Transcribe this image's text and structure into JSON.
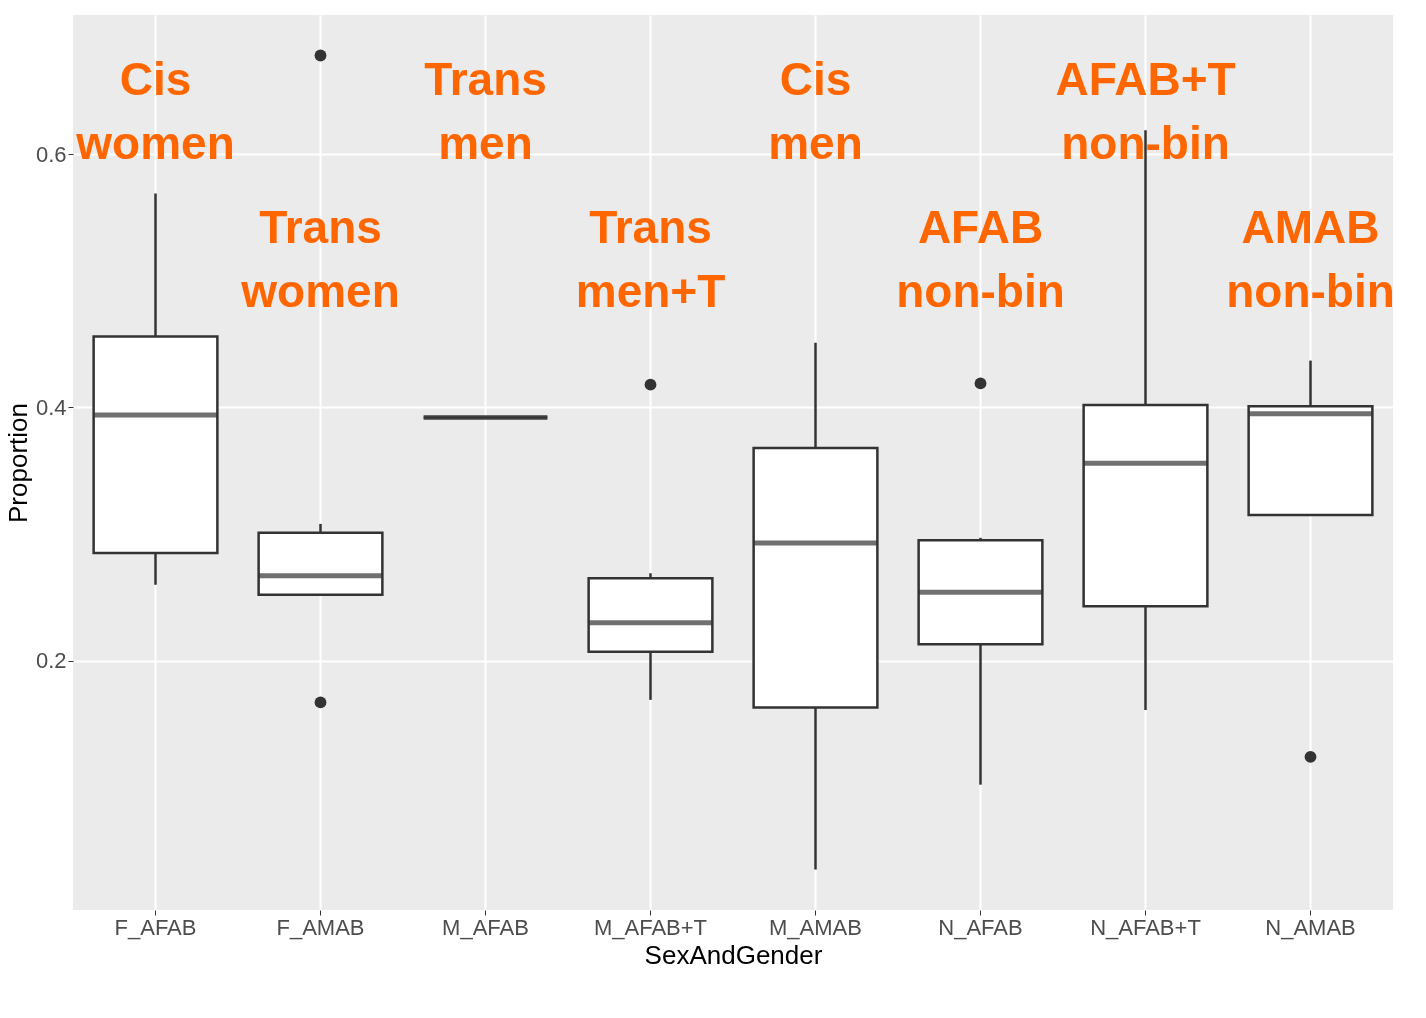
{
  "chart_data": {
    "type": "box",
    "xlabel": "SexAndGender",
    "ylabel": "Proportion",
    "categories": [
      "F_AFAB",
      "F_AMAB",
      "M_AFAB",
      "M_AFAB+T",
      "M_AMAB",
      "N_AFAB",
      "N_AFAB+T",
      "N_AMAB"
    ],
    "boxes": [
      {
        "low": 0.26,
        "q1": 0.285,
        "median": 0.394,
        "q3": 0.456,
        "high": 0.569
      },
      {
        "low": 0.252,
        "q1": 0.252,
        "median": 0.267,
        "q3": 0.301,
        "high": 0.308,
        "outliers": [
          0.678,
          0.167
        ]
      },
      {
        "low": 0.392,
        "q1": 0.392,
        "median": 0.392,
        "q3": 0.392,
        "high": 0.392
      },
      {
        "low": 0.169,
        "q1": 0.207,
        "median": 0.23,
        "q3": 0.265,
        "high": 0.269,
        "outliers": [
          0.418
        ]
      },
      {
        "low": 0.035,
        "q1": 0.163,
        "median": 0.293,
        "q3": 0.368,
        "high": 0.451
      },
      {
        "low": 0.102,
        "q1": 0.213,
        "median": 0.254,
        "q3": 0.295,
        "high": 0.297,
        "outliers": [
          0.419
        ]
      },
      {
        "low": 0.161,
        "q1": 0.243,
        "median": 0.356,
        "q3": 0.402,
        "high": 0.619
      },
      {
        "low": 0.315,
        "q1": 0.315,
        "median": 0.395,
        "q3": 0.401,
        "high": 0.437,
        "outliers": [
          0.124
        ]
      }
    ],
    "ylim": [
      0.003,
      0.71
    ],
    "yticks": [
      0.2,
      0.4,
      0.6
    ],
    "grid": true,
    "annotations": [
      "Cis\nwomen",
      "Trans\nwomen",
      "Trans\nmen",
      "Trans\nmen+T",
      "Cis\nmen",
      "AFAB\nnon-bin",
      "AFAB+T\nnon-bin",
      "AMAB\nnon-bin"
    ]
  }
}
